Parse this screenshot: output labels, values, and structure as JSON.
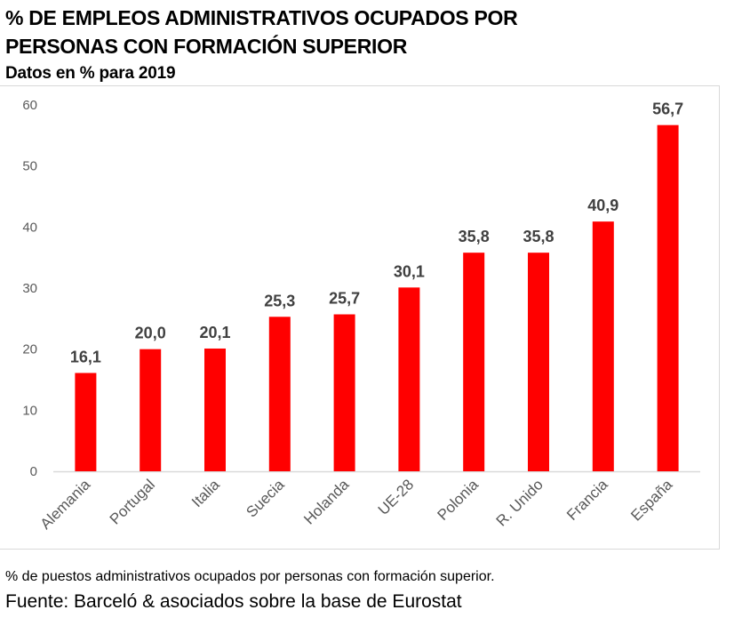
{
  "header": {
    "title_line1": "%  DE EMPLEOS ADMINISTRATIVOS OCUPADOS POR",
    "title_line2": "PERSONAS CON FORMACIÓN SUPERIOR",
    "subtitle": "Datos en % para 2019"
  },
  "footer": {
    "note": "% de puestos administrativos ocupados por personas con formación superior.",
    "source": "Fuente: Barceló & asociados sobre la base de Eurostat"
  },
  "colors": {
    "bar": "#ff0000",
    "axis": "#d9d9d9",
    "tick_text": "#595959",
    "data_label": "#404040"
  },
  "chart_data": {
    "type": "bar",
    "title": "% DE EMPLEOS ADMINISTRATIVOS OCUPADOS POR PERSONAS CON FORMACIÓN SUPERIOR",
    "subtitle": "Datos en % para 2019",
    "categories": [
      "Alemania",
      "Portugal",
      "Italia",
      "Suecia",
      "Holanda",
      "UE-28",
      "Polonia",
      "R. Unido",
      "Francia",
      "España"
    ],
    "values": [
      16.1,
      20.0,
      20.1,
      25.3,
      25.7,
      30.1,
      35.8,
      35.8,
      40.9,
      56.7
    ],
    "data_labels": [
      "16,1",
      "20,0",
      "20,1",
      "25,3",
      "25,7",
      "30,1",
      "35,8",
      "35,8",
      "40,9",
      "56,7"
    ],
    "xlabel": "",
    "ylabel": "",
    "ylim": [
      0,
      60
    ],
    "yticks": [
      0,
      10,
      20,
      30,
      40,
      50,
      60
    ],
    "grid": false,
    "legend": "none",
    "x_tick_rotation": "-45deg"
  }
}
